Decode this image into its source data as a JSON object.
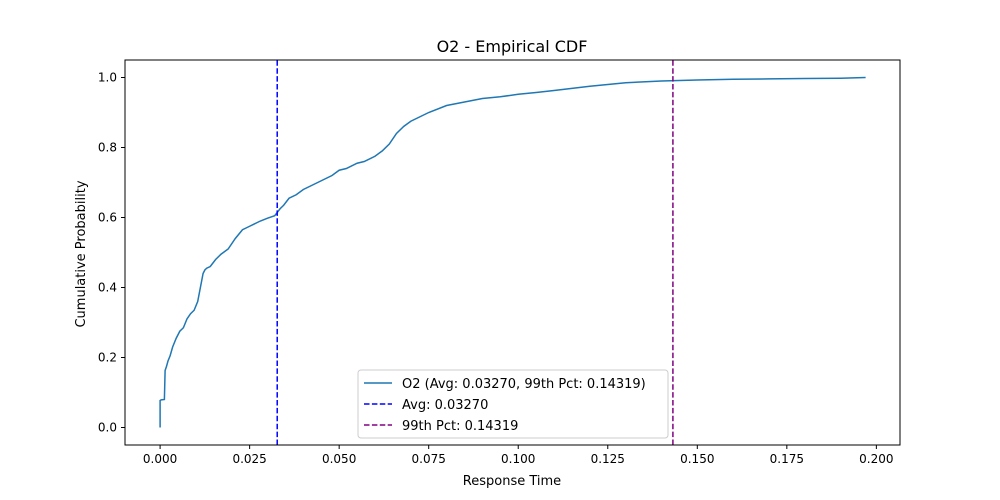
{
  "chart_data": {
    "type": "line",
    "title": "O2 - Empirical CDF",
    "xlabel": "Response Time",
    "ylabel": "Cumulative Probability",
    "xlim": [
      -0.0098,
      0.2066
    ],
    "ylim": [
      -0.05,
      1.05
    ],
    "xticks": [
      "0.000",
      "0.025",
      "0.050",
      "0.075",
      "0.100",
      "0.125",
      "0.150",
      "0.175",
      "0.200"
    ],
    "xtick_values": [
      0.0,
      0.025,
      0.05,
      0.075,
      0.1,
      0.125,
      0.15,
      0.175,
      0.2
    ],
    "yticks": [
      "0.0",
      "0.2",
      "0.4",
      "0.6",
      "0.8",
      "1.0"
    ],
    "ytick_values": [
      0.0,
      0.2,
      0.4,
      0.6,
      0.8,
      1.0
    ],
    "grid": false,
    "legend_position": "lower center",
    "series": [
      {
        "name": "O2 (Avg: 0.03270, 99th Pct: 0.14319)",
        "color": "#1f77b4",
        "style": "solid",
        "x": [
          0.0,
          0.0,
          0.0003,
          0.0012,
          0.0014,
          0.0018,
          0.0022,
          0.0028,
          0.0035,
          0.0045,
          0.0055,
          0.0065,
          0.0075,
          0.0085,
          0.0095,
          0.0105,
          0.012,
          0.0125,
          0.013,
          0.014,
          0.0155,
          0.017,
          0.019,
          0.021,
          0.023,
          0.024,
          0.025,
          0.027,
          0.028,
          0.03,
          0.032,
          0.0335,
          0.0345,
          0.036,
          0.038,
          0.04,
          0.042,
          0.045,
          0.048,
          0.05,
          0.052,
          0.055,
          0.057,
          0.06,
          0.062,
          0.064,
          0.066,
          0.068,
          0.07,
          0.072,
          0.075,
          0.08,
          0.085,
          0.09,
          0.095,
          0.1,
          0.105,
          0.11,
          0.12,
          0.13,
          0.14,
          0.15,
          0.16,
          0.17,
          0.18,
          0.19,
          0.197
        ],
        "y": [
          0.0,
          0.077,
          0.079,
          0.08,
          0.163,
          0.175,
          0.19,
          0.205,
          0.23,
          0.255,
          0.275,
          0.285,
          0.31,
          0.325,
          0.335,
          0.36,
          0.44,
          0.45,
          0.455,
          0.46,
          0.48,
          0.495,
          0.51,
          0.54,
          0.565,
          0.57,
          0.575,
          0.585,
          0.59,
          0.598,
          0.605,
          0.625,
          0.635,
          0.655,
          0.665,
          0.68,
          0.69,
          0.705,
          0.72,
          0.735,
          0.74,
          0.755,
          0.76,
          0.775,
          0.79,
          0.81,
          0.84,
          0.86,
          0.875,
          0.885,
          0.9,
          0.92,
          0.93,
          0.94,
          0.945,
          0.952,
          0.957,
          0.963,
          0.975,
          0.985,
          0.99,
          0.993,
          0.995,
          0.996,
          0.997,
          0.998,
          1.0
        ]
      },
      {
        "name": "Avg: 0.03270",
        "color": "#0000ff",
        "style": "dashed",
        "x": [
          0.0327,
          0.0327
        ],
        "y": [
          -0.05,
          1.05
        ]
      },
      {
        "name": "99th Pct: 0.14319",
        "color": "#800080",
        "style": "dashed",
        "x": [
          0.14319,
          0.14319
        ],
        "y": [
          -0.05,
          1.05
        ]
      }
    ]
  }
}
